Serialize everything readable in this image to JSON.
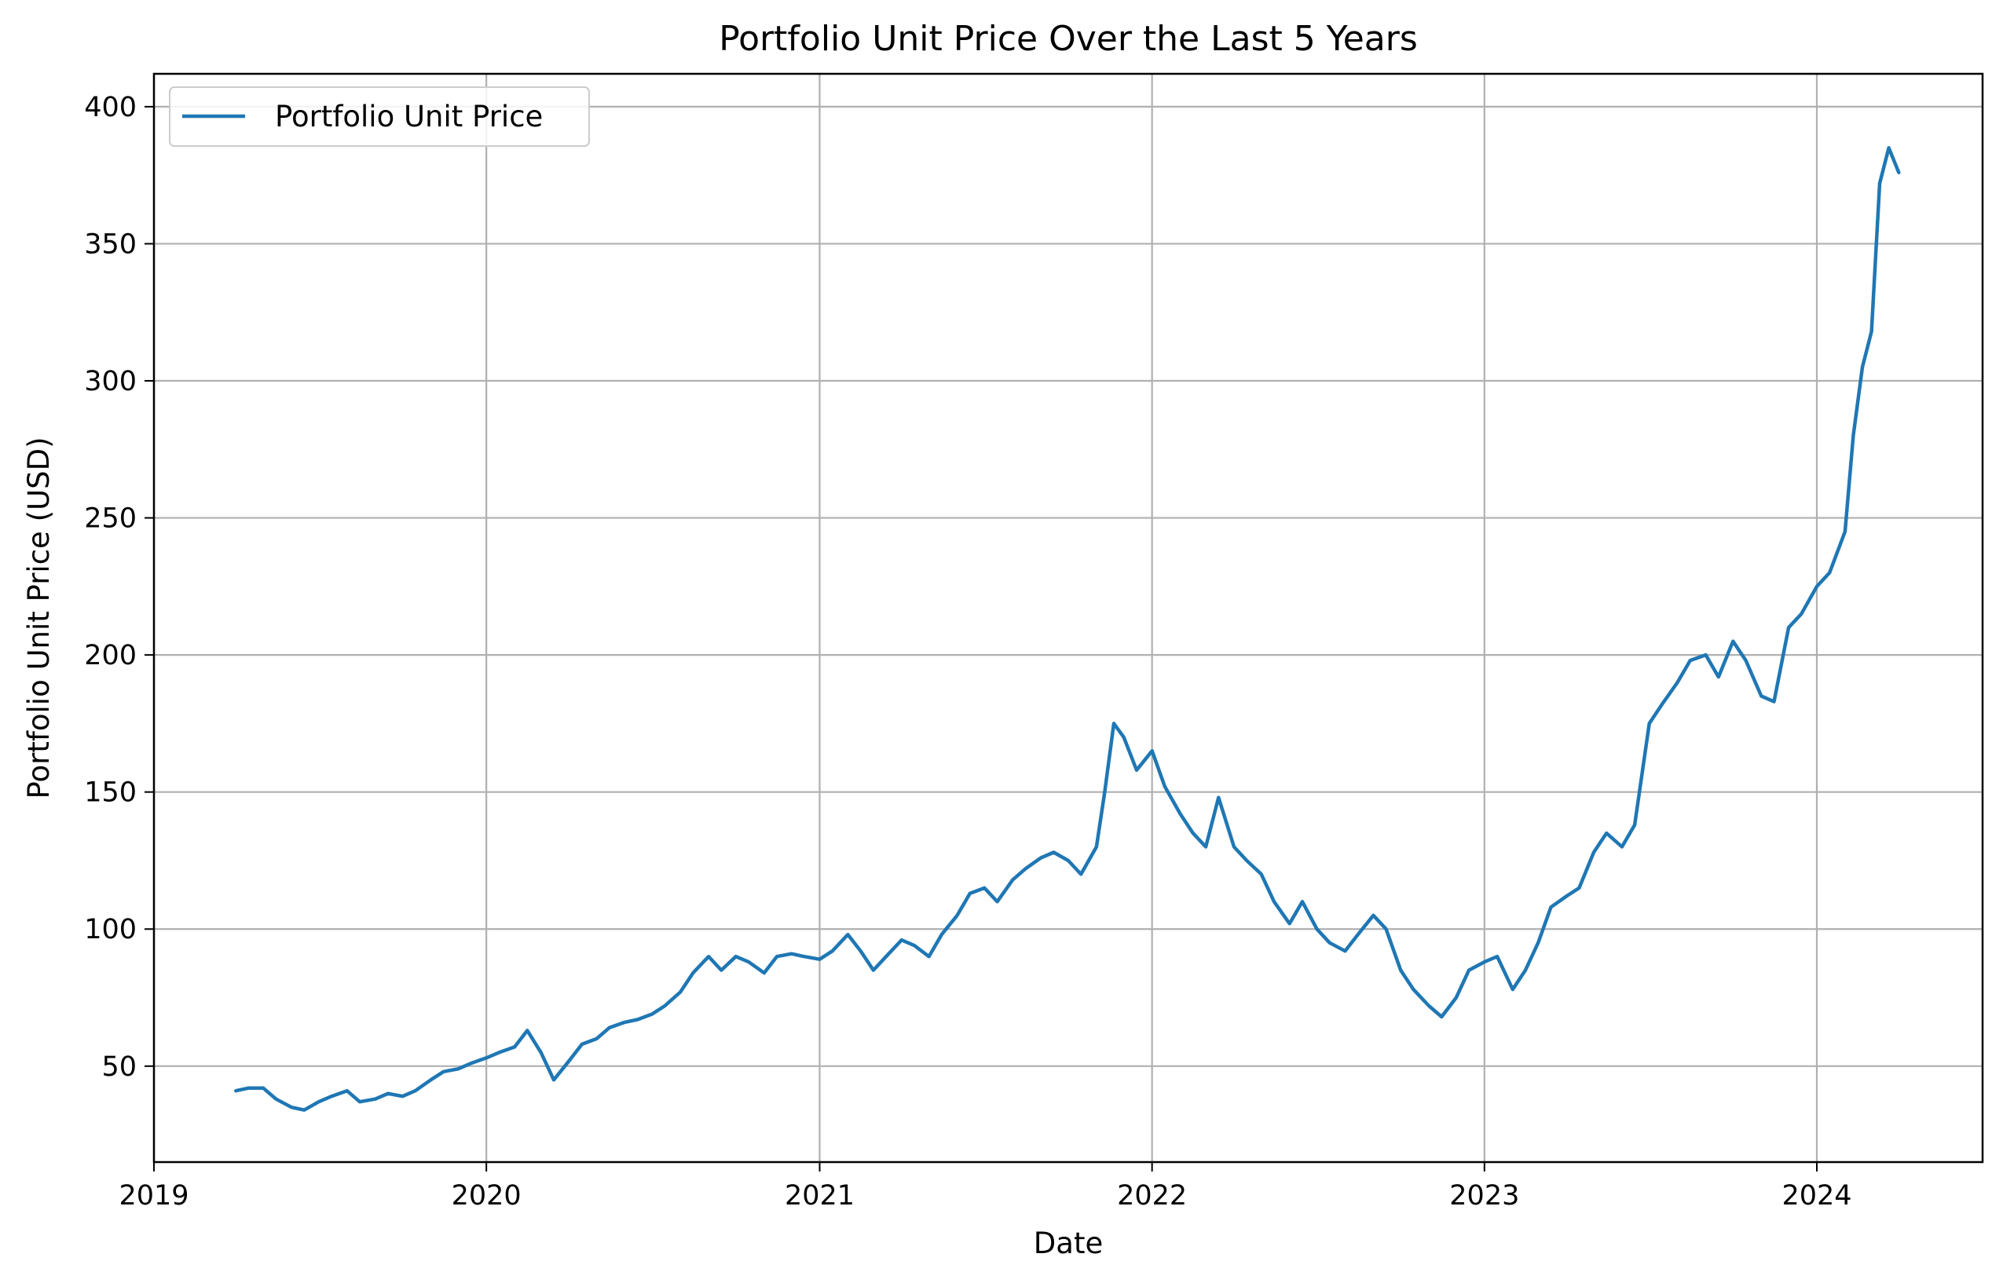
{
  "chart_data": {
    "type": "line",
    "title": "Portfolio Unit Price Over the Last 5 Years",
    "xlabel": "Date",
    "ylabel": "Portfolio Unit Price (USD)",
    "xlim": [
      "2019-01-01",
      "2024-07-01"
    ],
    "ylim": [
      15,
      412
    ],
    "x_ticks": [
      "2019",
      "2020",
      "2021",
      "2022",
      "2023",
      "2024"
    ],
    "y_ticks": [
      50,
      100,
      150,
      200,
      250,
      300,
      350,
      400
    ],
    "grid": true,
    "legend_position": "upper-left",
    "line_color": "#1f77b4",
    "series": [
      {
        "name": "Portfolio Unit Price",
        "x": [
          "2019-04-01",
          "2019-04-15",
          "2019-05-01",
          "2019-05-15",
          "2019-06-01",
          "2019-06-15",
          "2019-07-01",
          "2019-07-15",
          "2019-08-01",
          "2019-08-15",
          "2019-09-01",
          "2019-09-15",
          "2019-10-01",
          "2019-10-15",
          "2019-11-01",
          "2019-11-15",
          "2019-12-01",
          "2019-12-15",
          "2020-01-01",
          "2020-01-15",
          "2020-02-01",
          "2020-02-15",
          "2020-03-01",
          "2020-03-15",
          "2020-04-01",
          "2020-04-15",
          "2020-05-01",
          "2020-05-15",
          "2020-06-01",
          "2020-06-15",
          "2020-07-01",
          "2020-07-15",
          "2020-08-01",
          "2020-08-15",
          "2020-09-01",
          "2020-09-15",
          "2020-10-01",
          "2020-10-15",
          "2020-11-01",
          "2020-11-15",
          "2020-12-01",
          "2020-12-15",
          "2021-01-01",
          "2021-01-15",
          "2021-02-01",
          "2021-02-15",
          "2021-03-01",
          "2021-03-15",
          "2021-04-01",
          "2021-04-15",
          "2021-05-01",
          "2021-05-15",
          "2021-06-01",
          "2021-06-15",
          "2021-07-01",
          "2021-07-15",
          "2021-08-01",
          "2021-08-15",
          "2021-09-01",
          "2021-09-15",
          "2021-10-01",
          "2021-10-15",
          "2021-11-01",
          "2021-11-10",
          "2021-11-20",
          "2021-12-01",
          "2021-12-15",
          "2022-01-01",
          "2022-01-15",
          "2022-02-01",
          "2022-02-15",
          "2022-03-01",
          "2022-03-15",
          "2022-04-01",
          "2022-04-15",
          "2022-05-01",
          "2022-05-15",
          "2022-06-01",
          "2022-06-15",
          "2022-07-01",
          "2022-07-15",
          "2022-08-01",
          "2022-08-15",
          "2022-09-01",
          "2022-09-15",
          "2022-10-01",
          "2022-10-15",
          "2022-11-01",
          "2022-11-15",
          "2022-12-01",
          "2022-12-15",
          "2023-01-01",
          "2023-01-15",
          "2023-02-01",
          "2023-02-15",
          "2023-03-01",
          "2023-03-15",
          "2023-04-01",
          "2023-04-15",
          "2023-05-01",
          "2023-05-15",
          "2023-06-01",
          "2023-06-15",
          "2023-07-01",
          "2023-07-15",
          "2023-08-01",
          "2023-08-15",
          "2023-09-01",
          "2023-09-15",
          "2023-10-01",
          "2023-10-15",
          "2023-11-01",
          "2023-11-15",
          "2023-12-01",
          "2023-12-15",
          "2024-01-01",
          "2024-01-15",
          "2024-02-01",
          "2024-02-10",
          "2024-02-20",
          "2024-03-01",
          "2024-03-10",
          "2024-03-20",
          "2024-03-31"
        ],
        "y": [
          41,
          42,
          42,
          38,
          35,
          34,
          37,
          39,
          41,
          37,
          38,
          40,
          39,
          41,
          45,
          48,
          49,
          51,
          53,
          55,
          57,
          63,
          55,
          45,
          52,
          58,
          60,
          64,
          66,
          67,
          69,
          72,
          77,
          84,
          90,
          85,
          90,
          88,
          84,
          90,
          91,
          90,
          89,
          92,
          98,
          92,
          85,
          90,
          96,
          94,
          90,
          98,
          105,
          113,
          115,
          110,
          118,
          122,
          126,
          128,
          125,
          120,
          130,
          150,
          175,
          170,
          158,
          165,
          152,
          142,
          135,
          130,
          148,
          130,
          125,
          120,
          110,
          102,
          110,
          100,
          95,
          92,
          98,
          105,
          100,
          85,
          78,
          72,
          68,
          75,
          85,
          88,
          90,
          78,
          85,
          95,
          108,
          112,
          115,
          128,
          135,
          130,
          138,
          175,
          182,
          190,
          198,
          200,
          192,
          205,
          198,
          185,
          183,
          210,
          215,
          225,
          230,
          245,
          280,
          305,
          318,
          372,
          385,
          376
        ]
      }
    ]
  }
}
